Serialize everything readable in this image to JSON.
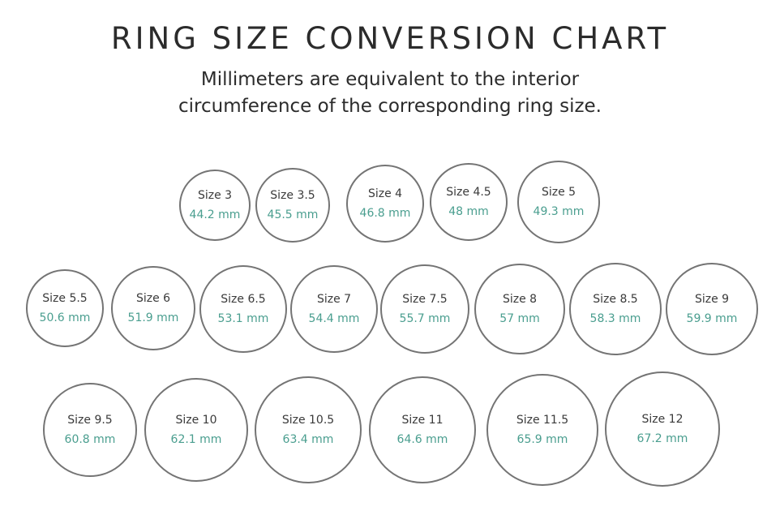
{
  "title": "RING SIZE CONVERSION CHART",
  "subtitle": {
    "line1": "Millimeters are equivalent to the interior",
    "line2": "circumference of the corresponding ring size."
  },
  "accent_color": "#4a9e8f",
  "rings": [
    {
      "size": "Size 3",
      "mm": "44.2 mm"
    },
    {
      "size": "Size 3.5",
      "mm": "45.5 mm"
    },
    {
      "size": "Size 4",
      "mm": "46.8 mm"
    },
    {
      "size": "Size 4.5",
      "mm": "48 mm"
    },
    {
      "size": "Size 5",
      "mm": "49.3 mm"
    },
    {
      "size": "Size 5.5",
      "mm": "50.6 mm"
    },
    {
      "size": "Size 6",
      "mm": "51.9 mm"
    },
    {
      "size": "Size 6.5",
      "mm": "53.1 mm"
    },
    {
      "size": "Size 7",
      "mm": "54.4 mm"
    },
    {
      "size": "Size 7.5",
      "mm": "55.7 mm"
    },
    {
      "size": "Size 8",
      "mm": "57 mm"
    },
    {
      "size": "Size 8.5",
      "mm": "58.3 mm"
    },
    {
      "size": "Size 9",
      "mm": "59.9 mm"
    },
    {
      "size": "Size 9.5",
      "mm": "60.8 mm"
    },
    {
      "size": "Size 10",
      "mm": "62.1 mm"
    },
    {
      "size": "Size 10.5",
      "mm": "63.4 mm"
    },
    {
      "size": "Size 11",
      "mm": "64.6 mm"
    },
    {
      "size": "Size 11.5",
      "mm": "65.9 mm"
    },
    {
      "size": "Size 12",
      "mm": "67.2 mm"
    }
  ]
}
